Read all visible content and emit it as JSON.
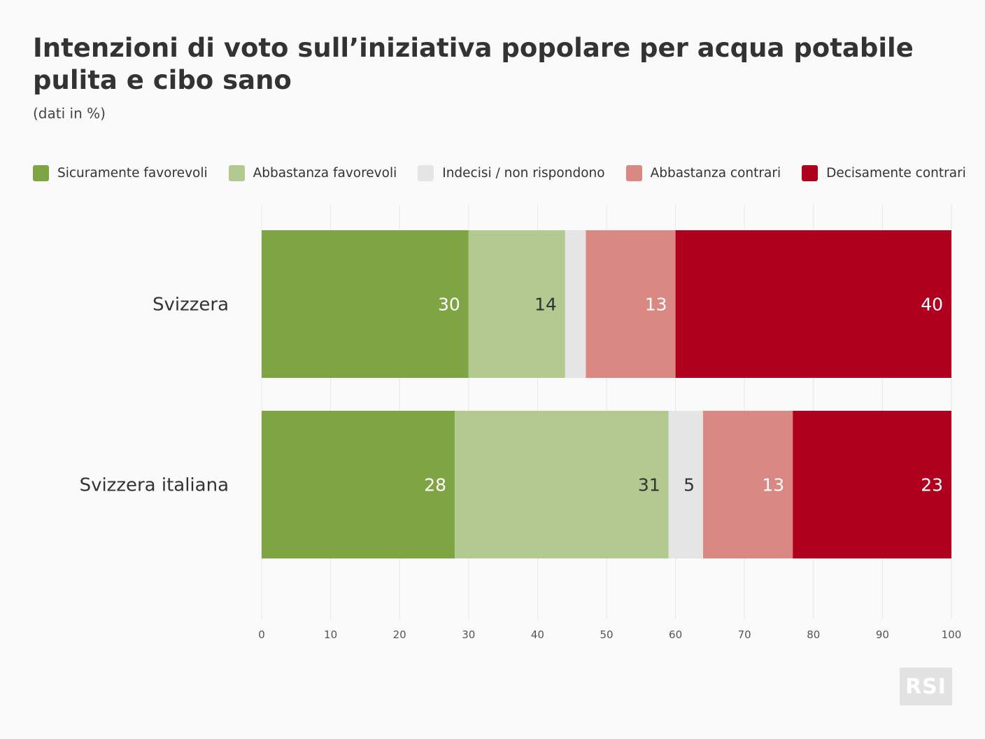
{
  "chart_data": {
    "type": "bar",
    "orientation": "horizontal",
    "stacked": true,
    "title": "Intenzioni di voto sull’iniziativa popolare per acqua potabile pulita e cibo sano",
    "subtitle": "(dati in %)",
    "categories": [
      "Svizzera",
      "Svizzera italiana"
    ],
    "series": [
      {
        "name": "Sicuramente favorevoli",
        "color": "#7fa443",
        "label_color": "#ffffff",
        "values": [
          30,
          28
        ],
        "labels": [
          "30",
          "28"
        ]
      },
      {
        "name": "Abbastanza favorevoli",
        "color": "#b2ca90",
        "label_color": "#333333",
        "values": [
          14,
          31
        ],
        "labels": [
          "14",
          "31"
        ]
      },
      {
        "name": "Indecisi / non rispondono",
        "color": "#e5e5e5",
        "label_color": "#333333",
        "values": [
          3,
          5
        ],
        "labels": [
          "",
          "5"
        ]
      },
      {
        "name": "Abbastanza contrari",
        "color": "#d98883",
        "label_color": "#ffffff",
        "values": [
          13,
          13
        ],
        "labels": [
          "13",
          "13"
        ]
      },
      {
        "name": "Decisamente contrari",
        "color": "#b00020",
        "label_color": "#ffffff",
        "values": [
          40,
          23
        ],
        "labels": [
          "40",
          "23"
        ]
      }
    ],
    "xlim": [
      0,
      100
    ],
    "xticks": [
      "0",
      "10",
      "20",
      "30",
      "40",
      "50",
      "60",
      "70",
      "80",
      "90",
      "100"
    ],
    "xlabel": "",
    "ylabel": "",
    "grid": true,
    "legend_position": "top-left"
  },
  "logo": {
    "text": "RSI"
  }
}
